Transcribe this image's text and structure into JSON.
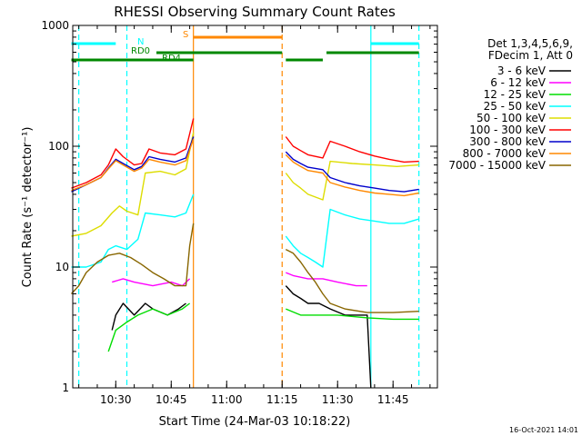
{
  "chart_data": {
    "type": "line",
    "title": "RHESSI Observing Summary Count Rates",
    "xlabel": "Start Time (24-Mar-03 10:18:22)",
    "ylabel": "Count Rate (s⁻¹ detector⁻¹)",
    "yscale": "log",
    "ylim": [
      1,
      1000
    ],
    "xlim": [
      "10:18:22",
      "11:57:00"
    ],
    "x_ticks": [
      "10:30",
      "10:45",
      "11:00",
      "11:15",
      "11:30",
      "11:45"
    ],
    "y_ticks": [
      "1",
      "10",
      "100",
      "1000"
    ],
    "timestamp": "16-Oct-2021 14:01",
    "legend": {
      "placement": "right",
      "header": [
        "Det 1,3,4,5,6,9,",
        "FDecim 1, Att 0"
      ],
      "entries": [
        {
          "label": "3 - 6 keV",
          "color": "#000000"
        },
        {
          "label": "6 - 12 keV",
          "color": "#ff00ff"
        },
        {
          "label": "12 - 25 keV",
          "color": "#00dd00"
        },
        {
          "label": "25 - 50 keV",
          "color": "#00ffff"
        },
        {
          "label": "50 - 100 keV",
          "color": "#dddd00"
        },
        {
          "label": "100 - 300 keV",
          "color": "#ff0000"
        },
        {
          "label": "300 - 800 keV",
          "color": "#0000cc"
        },
        {
          "label": "800 - 7000 keV",
          "color": "#ff8800"
        },
        {
          "label": "7000 - 15000 keV",
          "color": "#886600"
        }
      ]
    },
    "annotations": {
      "bars": [
        {
          "label": "N",
          "color": "#00ffff",
          "segments": [
            [
              "10:18",
              "10:30"
            ],
            [
              "11:39",
              "11:52"
            ]
          ]
        },
        {
          "label": "S",
          "color": "#ff8800",
          "segments": [
            [
              "10:51",
              "11:15"
            ]
          ]
        },
        {
          "label": "RD0",
          "color": "#008800",
          "segments": [
            [
              "10:41",
              "11:15"
            ],
            [
              "11:27",
              "11:52"
            ]
          ]
        },
        {
          "label": "RD4",
          "color": "#008800",
          "segments": [
            [
              "10:18",
              "10:51"
            ],
            [
              "11:16",
              "11:26"
            ]
          ]
        }
      ],
      "vlines": [
        {
          "time": "10:20",
          "color": "#00ffff",
          "style": "dashed"
        },
        {
          "time": "10:33",
          "color": "#00ffff",
          "style": "dashed"
        },
        {
          "time": "10:51",
          "color": "#ff8800",
          "style": "solid"
        },
        {
          "time": "11:15",
          "color": "#ff8800",
          "style": "dashed"
        },
        {
          "time": "11:39",
          "color": "#00ffff",
          "style": "solid"
        },
        {
          "time": "11:52",
          "color": "#00ffff",
          "style": "dashed"
        }
      ]
    },
    "series": [
      {
        "label": "3 - 6 keV",
        "color": "#000000",
        "segments": [
          [
            [
              "10:29",
              3
            ],
            [
              "10:30",
              4
            ],
            [
              "10:32",
              5
            ],
            [
              "10:35",
              4
            ],
            [
              "10:38",
              5
            ],
            [
              "10:40",
              4.5
            ],
            [
              "10:44",
              4
            ],
            [
              "10:47",
              4.5
            ],
            [
              "10:49",
              5
            ]
          ],
          [
            [
              "11:16",
              7
            ],
            [
              "11:18",
              6
            ],
            [
              "11:20",
              5.5
            ],
            [
              "11:22",
              5
            ],
            [
              "11:25",
              5
            ],
            [
              "11:28",
              4.5
            ],
            [
              "11:32",
              4
            ],
            [
              "11:36",
              4
            ],
            [
              "11:38",
              4
            ],
            [
              "11:39",
              1
            ]
          ]
        ]
      },
      {
        "label": "6 - 12 keV",
        "color": "#ff00ff",
        "segments": [
          [
            [
              "10:29",
              7.5
            ],
            [
              "10:32",
              8
            ],
            [
              "10:35",
              7.5
            ],
            [
              "10:40",
              7
            ],
            [
              "10:45",
              7.5
            ],
            [
              "10:48",
              7
            ],
            [
              "10:50",
              8
            ]
          ],
          [
            [
              "11:16",
              9
            ],
            [
              "11:18",
              8.5
            ],
            [
              "11:22",
              8
            ],
            [
              "11:26",
              8
            ],
            [
              "11:30",
              7.5
            ],
            [
              "11:35",
              7
            ],
            [
              "11:38",
              7
            ]
          ]
        ]
      },
      {
        "label": "12 - 25 keV",
        "color": "#00dd00",
        "segments": [
          [
            [
              "10:28",
              2
            ],
            [
              "10:30",
              3
            ],
            [
              "10:33",
              3.5
            ],
            [
              "10:36",
              4
            ],
            [
              "10:40",
              4.5
            ],
            [
              "10:44",
              4
            ],
            [
              "10:48",
              4.5
            ],
            [
              "10:50",
              5
            ]
          ],
          [
            [
              "11:16",
              4.5
            ],
            [
              "11:20",
              4
            ],
            [
              "11:25",
              4
            ],
            [
              "11:30",
              4
            ],
            [
              "11:38",
              3.8
            ],
            [
              "11:45",
              3.7
            ],
            [
              "11:52",
              3.7
            ]
          ]
        ]
      },
      {
        "label": "25 - 50 keV",
        "color": "#00ffff",
        "segments": [
          [
            [
              "10:18",
              10
            ],
            [
              "10:22",
              10
            ],
            [
              "10:26",
              11
            ],
            [
              "10:28",
              14
            ],
            [
              "10:30",
              15
            ],
            [
              "10:33",
              14
            ],
            [
              "10:36",
              17
            ],
            [
              "10:38",
              28
            ],
            [
              "10:42",
              27
            ],
            [
              "10:46",
              26
            ],
            [
              "10:49",
              28
            ],
            [
              "10:51",
              40
            ]
          ],
          [
            [
              "11:16",
              18
            ],
            [
              "11:18",
              15
            ],
            [
              "11:20",
              13
            ],
            [
              "11:22",
              12
            ],
            [
              "11:24",
              11
            ],
            [
              "11:26",
              10
            ],
            [
              "11:28",
              30
            ],
            [
              "11:32",
              27
            ],
            [
              "11:36",
              25
            ],
            [
              "11:40",
              24
            ],
            [
              "11:44",
              23
            ],
            [
              "11:48",
              23
            ],
            [
              "11:52",
              25
            ]
          ]
        ]
      },
      {
        "label": "50 - 100 keV",
        "color": "#dddd00",
        "segments": [
          [
            [
              "10:18",
              18
            ],
            [
              "10:22",
              19
            ],
            [
              "10:26",
              22
            ],
            [
              "10:29",
              28
            ],
            [
              "10:31",
              32
            ],
            [
              "10:33",
              29
            ],
            [
              "10:36",
              27
            ],
            [
              "10:38",
              60
            ],
            [
              "10:42",
              62
            ],
            [
              "10:46",
              58
            ],
            [
              "10:49",
              65
            ],
            [
              "10:51",
              130
            ]
          ],
          [
            [
              "11:16",
              60
            ],
            [
              "11:18",
              50
            ],
            [
              "11:20",
              45
            ],
            [
              "11:22",
              40
            ],
            [
              "11:26",
              36
            ],
            [
              "11:28",
              75
            ],
            [
              "11:34",
              72
            ],
            [
              "11:40",
              70
            ],
            [
              "11:46",
              68
            ],
            [
              "11:52",
              70
            ]
          ]
        ]
      },
      {
        "label": "100 - 300 keV",
        "color": "#ff0000",
        "segments": [
          [
            [
              "10:18",
              45
            ],
            [
              "10:22",
              50
            ],
            [
              "10:26",
              58
            ],
            [
              "10:28",
              70
            ],
            [
              "10:30",
              95
            ],
            [
              "10:32",
              82
            ],
            [
              "10:35",
              70
            ],
            [
              "10:37",
              72
            ],
            [
              "10:39",
              95
            ],
            [
              "10:42",
              88
            ],
            [
              "10:46",
              85
            ],
            [
              "10:49",
              95
            ],
            [
              "10:51",
              170
            ]
          ],
          [
            [
              "11:16",
              120
            ],
            [
              "11:18",
              100
            ],
            [
              "11:20",
              92
            ],
            [
              "11:22",
              85
            ],
            [
              "11:26",
              80
            ],
            [
              "11:28",
              110
            ],
            [
              "11:32",
              100
            ],
            [
              "11:36",
              90
            ],
            [
              "11:40",
              83
            ],
            [
              "11:44",
              78
            ],
            [
              "11:48",
              74
            ],
            [
              "11:52",
              75
            ]
          ]
        ]
      },
      {
        "label": "300 - 800 keV",
        "color": "#0000cc",
        "segments": [
          [
            [
              "10:18",
              42
            ],
            [
              "10:22",
              48
            ],
            [
              "10:26",
              55
            ],
            [
              "10:28",
              66
            ],
            [
              "10:30",
              78
            ],
            [
              "10:32",
              72
            ],
            [
              "10:35",
              64
            ],
            [
              "10:37",
              68
            ],
            [
              "10:39",
              82
            ],
            [
              "10:42",
              78
            ],
            [
              "10:46",
              74
            ],
            [
              "10:49",
              80
            ],
            [
              "10:51",
              120
            ]
          ],
          [
            [
              "11:16",
              90
            ],
            [
              "11:18",
              78
            ],
            [
              "11:20",
              72
            ],
            [
              "11:22",
              67
            ],
            [
              "11:26",
              64
            ],
            [
              "11:28",
              55
            ],
            [
              "11:32",
              50
            ],
            [
              "11:36",
              47
            ],
            [
              "11:40",
              45
            ],
            [
              "11:44",
              43
            ],
            [
              "11:48",
              42
            ],
            [
              "11:52",
              44
            ]
          ]
        ]
      },
      {
        "label": "800 - 7000 keV",
        "color": "#ff8800",
        "segments": [
          [
            [
              "10:18",
              43
            ],
            [
              "10:22",
              48
            ],
            [
              "10:26",
              55
            ],
            [
              "10:28",
              65
            ],
            [
              "10:30",
              76
            ],
            [
              "10:32",
              70
            ],
            [
              "10:35",
              62
            ],
            [
              "10:37",
              66
            ],
            [
              "10:39",
              78
            ],
            [
              "10:42",
              74
            ],
            [
              "10:46",
              70
            ],
            [
              "10:49",
              76
            ],
            [
              "10:51",
              115
            ]
          ],
          [
            [
              "11:16",
              85
            ],
            [
              "11:18",
              74
            ],
            [
              "11:20",
              68
            ],
            [
              "11:22",
              63
            ],
            [
              "11:26",
              60
            ],
            [
              "11:28",
              50
            ],
            [
              "11:32",
              46
            ],
            [
              "11:36",
              43
            ],
            [
              "11:40",
              41
            ],
            [
              "11:44",
              40
            ],
            [
              "11:48",
              39
            ],
            [
              "11:52",
              41
            ]
          ]
        ]
      },
      {
        "label": "7000 - 15000 keV",
        "color": "#886600",
        "segments": [
          [
            [
              "10:18",
              6
            ],
            [
              "10:20",
              7
            ],
            [
              "10:22",
              9
            ],
            [
              "10:25",
              11
            ],
            [
              "10:28",
              12.5
            ],
            [
              "10:31",
              13
            ],
            [
              "10:34",
              12
            ],
            [
              "10:37",
              10.5
            ],
            [
              "10:40",
              9
            ],
            [
              "10:43",
              8
            ],
            [
              "10:46",
              7
            ],
            [
              "10:49",
              7
            ],
            [
              "10:50",
              15
            ],
            [
              "10:51",
              23
            ]
          ],
          [
            [
              "11:16",
              14
            ],
            [
              "11:18",
              13
            ],
            [
              "11:20",
              11
            ],
            [
              "11:22",
              9
            ],
            [
              "11:24",
              7.5
            ],
            [
              "11:26",
              6
            ],
            [
              "11:28",
              5
            ],
            [
              "11:32",
              4.5
            ],
            [
              "11:38",
              4.2
            ],
            [
              "11:45",
              4.2
            ],
            [
              "11:52",
              4.3
            ]
          ]
        ]
      }
    ]
  }
}
